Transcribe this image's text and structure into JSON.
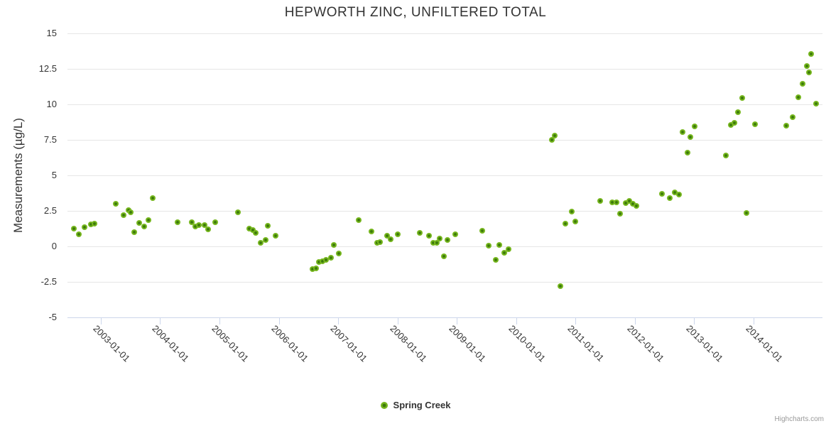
{
  "title": "HEPWORTH ZINC, UNFILTERED TOTAL",
  "y_axis": {
    "title": "Measurements (µg/L)",
    "tick_labels": [
      "15",
      "12.5",
      "10",
      "7.5",
      "5",
      "2.5",
      "0",
      "-2.5",
      "-5"
    ],
    "tick_values": [
      15,
      12.5,
      10,
      7.5,
      5,
      2.5,
      0,
      -2.5,
      -5
    ]
  },
  "x_axis": {
    "tick_years": [
      2003,
      2004,
      2005,
      2006,
      2007,
      2008,
      2009,
      2010,
      2011,
      2012,
      2013,
      2014
    ],
    "tick_labels": [
      "2003-01-01",
      "2004-01-01",
      "2005-01-01",
      "2006-01-01",
      "2007-01-01",
      "2008-01-01",
      "2009-01-01",
      "2010-01-01",
      "2011-01-01",
      "2012-01-01",
      "2013-01-01",
      "2014-01-01"
    ]
  },
  "legend": {
    "series_label": "Spring Creek"
  },
  "credits_label": "Highcharts.com",
  "colors": {
    "text": "#333333",
    "grid": "#e6e6e6",
    "axis_line": "#ccd6eb",
    "point_outer": "#76b61e",
    "point_inner": "#3c7a0b",
    "credits": "#999999"
  },
  "chart_data": {
    "type": "scatter",
    "title": "HEPWORTH ZINC, UNFILTERED TOTAL",
    "xlabel": "",
    "ylabel": "Measurements (µg/L)",
    "xlim": [
      2002.44,
      2015.16
    ],
    "ylim": [
      -5,
      15
    ],
    "x_tick_labels": [
      "2003-01-01",
      "2004-01-01",
      "2005-01-01",
      "2006-01-01",
      "2007-01-01",
      "2008-01-01",
      "2009-01-01",
      "2010-01-01",
      "2011-01-01",
      "2012-01-01",
      "2013-01-01",
      "2014-01-01"
    ],
    "grid": true,
    "legend_position": "bottom-center",
    "series": [
      {
        "name": "Spring Creek",
        "marker_color": "#76b61e",
        "points": [
          [
            2002.55,
            1.27
          ],
          [
            2002.63,
            0.87
          ],
          [
            2002.73,
            1.35
          ],
          [
            2002.83,
            1.55
          ],
          [
            2002.9,
            1.6
          ],
          [
            2003.25,
            3.0
          ],
          [
            2003.39,
            2.2
          ],
          [
            2003.47,
            2.55
          ],
          [
            2003.51,
            2.4
          ],
          [
            2003.57,
            1.0
          ],
          [
            2003.65,
            1.65
          ],
          [
            2003.73,
            1.4
          ],
          [
            2003.81,
            1.85
          ],
          [
            2003.87,
            3.4
          ],
          [
            2004.3,
            1.72
          ],
          [
            2004.53,
            1.7
          ],
          [
            2004.59,
            1.42
          ],
          [
            2004.65,
            1.52
          ],
          [
            2004.75,
            1.48
          ],
          [
            2004.81,
            1.22
          ],
          [
            2004.93,
            1.7
          ],
          [
            2005.31,
            2.4
          ],
          [
            2005.5,
            1.27
          ],
          [
            2005.56,
            1.13
          ],
          [
            2005.61,
            0.97
          ],
          [
            2005.7,
            0.27
          ],
          [
            2005.78,
            0.43
          ],
          [
            2005.82,
            1.43
          ],
          [
            2005.95,
            0.77
          ],
          [
            2006.57,
            -1.6
          ],
          [
            2006.63,
            -1.55
          ],
          [
            2006.68,
            -1.08
          ],
          [
            2006.74,
            -1.05
          ],
          [
            2006.8,
            -0.97
          ],
          [
            2006.88,
            -0.8
          ],
          [
            2006.93,
            0.08
          ],
          [
            2007.01,
            -0.5
          ],
          [
            2007.35,
            1.85
          ],
          [
            2007.56,
            1.07
          ],
          [
            2007.66,
            0.23
          ],
          [
            2007.71,
            0.28
          ],
          [
            2007.82,
            0.73
          ],
          [
            2007.89,
            0.48
          ],
          [
            2008.01,
            0.83
          ],
          [
            2008.37,
            0.95
          ],
          [
            2008.53,
            0.75
          ],
          [
            2008.6,
            0.23
          ],
          [
            2008.66,
            0.25
          ],
          [
            2008.71,
            0.53
          ],
          [
            2008.78,
            -0.68
          ],
          [
            2008.84,
            0.45
          ],
          [
            2008.97,
            0.87
          ],
          [
            2009.43,
            1.1
          ],
          [
            2009.54,
            0.05
          ],
          [
            2009.66,
            -0.93
          ],
          [
            2009.72,
            0.1
          ],
          [
            2009.8,
            -0.45
          ],
          [
            2009.87,
            -0.2
          ],
          [
            2010.6,
            7.52
          ],
          [
            2010.65,
            7.8
          ],
          [
            2010.75,
            -2.8
          ],
          [
            2010.83,
            1.62
          ],
          [
            2010.94,
            2.43
          ],
          [
            2011.0,
            1.73
          ],
          [
            2011.42,
            3.2
          ],
          [
            2011.62,
            3.1
          ],
          [
            2011.69,
            3.08
          ],
          [
            2011.75,
            2.3
          ],
          [
            2011.84,
            3.05
          ],
          [
            2011.9,
            3.2
          ],
          [
            2011.96,
            3.0
          ],
          [
            2012.03,
            2.83
          ],
          [
            2012.45,
            3.7
          ],
          [
            2012.59,
            3.4
          ],
          [
            2012.67,
            3.82
          ],
          [
            2012.74,
            3.65
          ],
          [
            2012.8,
            8.05
          ],
          [
            2012.89,
            6.6
          ],
          [
            2012.93,
            7.72
          ],
          [
            2013.01,
            8.47
          ],
          [
            2013.53,
            6.4
          ],
          [
            2013.62,
            8.57
          ],
          [
            2013.68,
            8.68
          ],
          [
            2013.74,
            9.43
          ],
          [
            2013.81,
            10.43
          ],
          [
            2013.88,
            2.35
          ],
          [
            2014.02,
            8.6
          ],
          [
            2014.55,
            8.52
          ],
          [
            2014.66,
            9.1
          ],
          [
            2014.75,
            10.48
          ],
          [
            2014.83,
            11.47
          ],
          [
            2014.9,
            12.68
          ],
          [
            2014.93,
            12.23
          ],
          [
            2014.97,
            13.57
          ],
          [
            2015.05,
            10.05
          ]
        ]
      }
    ]
  }
}
